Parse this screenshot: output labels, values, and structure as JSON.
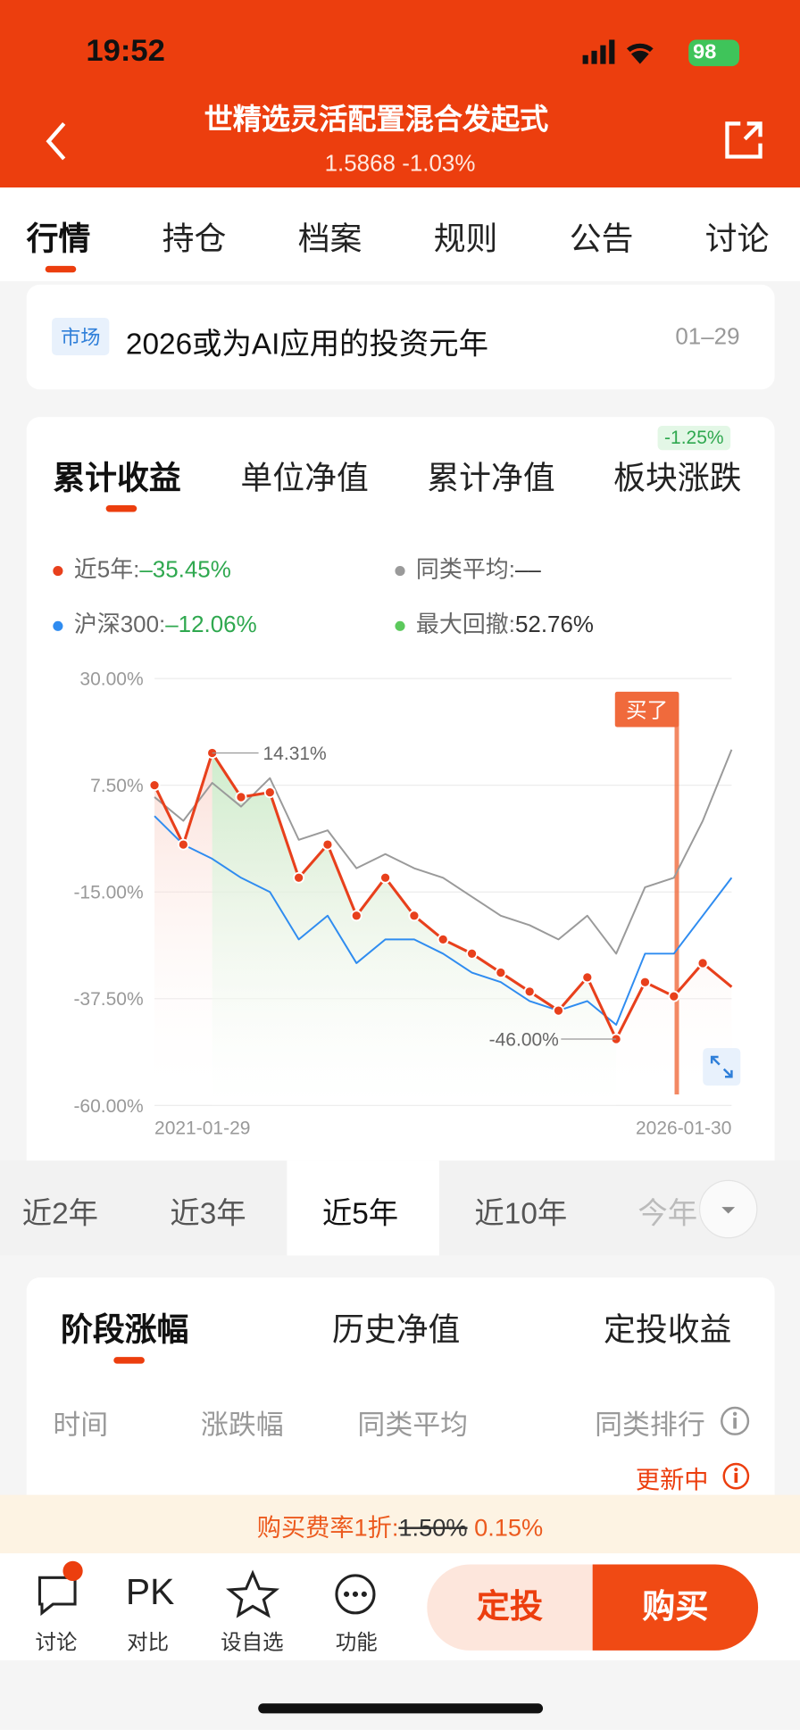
{
  "status_bar": {
    "time": "19:52",
    "battery": "98"
  },
  "header": {
    "title": "世精选灵活配置混合发起式",
    "price": "1.5868",
    "change": "-1.03%"
  },
  "tabs": [
    "行情",
    "持仓",
    "档案",
    "规则",
    "公告",
    "讨论"
  ],
  "news": {
    "tag": "市场",
    "text": "2026或为AI应用的投资元年",
    "date": "01–29"
  },
  "chart_tabs": [
    "累计收益",
    "单位净值",
    "累计净值",
    "板块涨跌"
  ],
  "sector_badge": "-1.25%",
  "chart_data": {
    "type": "line",
    "legend": [
      {
        "label": "近5年:",
        "value": "–35.45%",
        "color": "#e8401c"
      },
      {
        "label": "同类平均:",
        "value": "––",
        "color": "#9a9a9a"
      },
      {
        "label": "沪深300:",
        "value": "–12.06%",
        "color": "#2f8cf0"
      },
      {
        "label": "最大回撤:",
        "value": "52.76%",
        "color": "#5cc95c"
      }
    ],
    "categories": [
      "2021-01-29",
      null,
      null,
      null,
      null,
      null,
      null,
      null,
      null,
      null,
      null,
      null,
      null,
      null,
      null,
      null,
      null,
      null,
      null,
      null,
      "2026-01-30"
    ],
    "series": [
      {
        "color": "#9a9a9a",
        "values": [
          5,
          0,
          8,
          3,
          9,
          -4,
          -2,
          -10,
          -7,
          -10,
          -12,
          -16,
          -20,
          -22,
          -25,
          -20,
          -28,
          -14,
          -12,
          0,
          15
        ]
      },
      {
        "color": "#2f8cf0",
        "values": [
          1,
          -5,
          -8,
          -12,
          -15,
          -25,
          -20,
          -30,
          -25,
          -25,
          -28,
          -32,
          -34,
          -38,
          -40,
          -38,
          -43,
          -28,
          -28,
          -20,
          -12
        ]
      },
      {
        "color": "#e8401c",
        "values": [
          7.5,
          -5,
          14.31,
          5,
          6,
          -12,
          -5,
          -20,
          -12,
          -20,
          -25,
          -28,
          -32,
          -36,
          -40,
          -33,
          -46,
          -34,
          -37,
          -30,
          -35
        ]
      }
    ],
    "ylim": [
      -60,
      30
    ],
    "yticks": [
      {
        "value": 30,
        "label": "30.00%"
      },
      {
        "value": 7.5,
        "label": "7.50%"
      },
      {
        "value": -15,
        "label": "-15.00%"
      },
      {
        "value": -37.5,
        "label": "-37.50%"
      },
      {
        "value": -60,
        "label": "-60.00%"
      }
    ],
    "grid": true,
    "annotations": {
      "peak": "14.31%",
      "trough": "-46.00%",
      "buy": "买了"
    }
  },
  "period_tabs": [
    "近2年",
    "近3年",
    "近5年",
    "近10年",
    "今年"
  ],
  "stage_tabs": [
    "阶段涨幅",
    "历史净值",
    "定投收益"
  ],
  "stage_columns": [
    "时间",
    "涨跌幅",
    "同类平均",
    "同类排行"
  ],
  "stage_status": "更新中",
  "fee": {
    "label": "购买费率1折:",
    "original": "1.50%",
    "discounted": "0.15%"
  },
  "bottom_actions": [
    "讨论",
    "对比",
    "设自选",
    "功能"
  ],
  "pk": "PK",
  "buttons": [
    "定投",
    "购买"
  ]
}
